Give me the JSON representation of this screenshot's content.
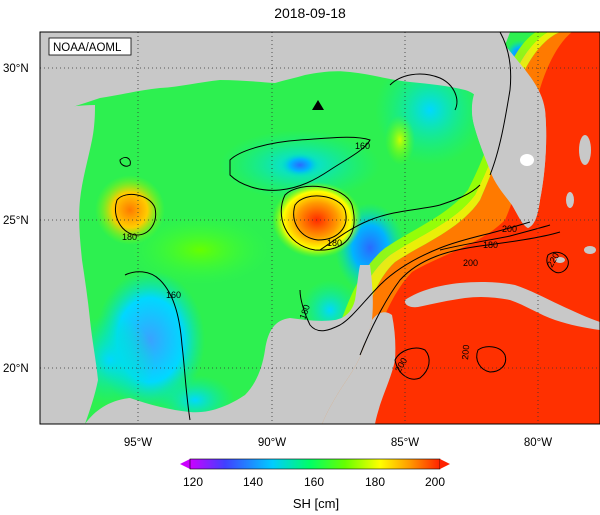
{
  "title": "2018-09-18",
  "credit": "NOAA/AOML",
  "map": {
    "lon_ticks": [
      "95°W",
      "90°W",
      "85°W",
      "80°W"
    ],
    "lat_ticks": [
      "30°N",
      "25°N",
      "20°N"
    ],
    "land_color": "#c8c8c8",
    "contour_labels": [
      "160",
      "180",
      "180",
      "180",
      "200",
      "200",
      "200",
      "160",
      "200",
      "220",
      "180"
    ],
    "marker": "black-triangle"
  },
  "colorbar": {
    "label": "SH [cm]",
    "ticks": [
      "120",
      "140",
      "160",
      "180",
      "200"
    ],
    "range": [
      120,
      200
    ],
    "colors": [
      "#cc00ff",
      "#4040ff",
      "#00ccff",
      "#00ff66",
      "#33ff00",
      "#ffff00",
      "#ff9900",
      "#ff2200"
    ]
  }
}
